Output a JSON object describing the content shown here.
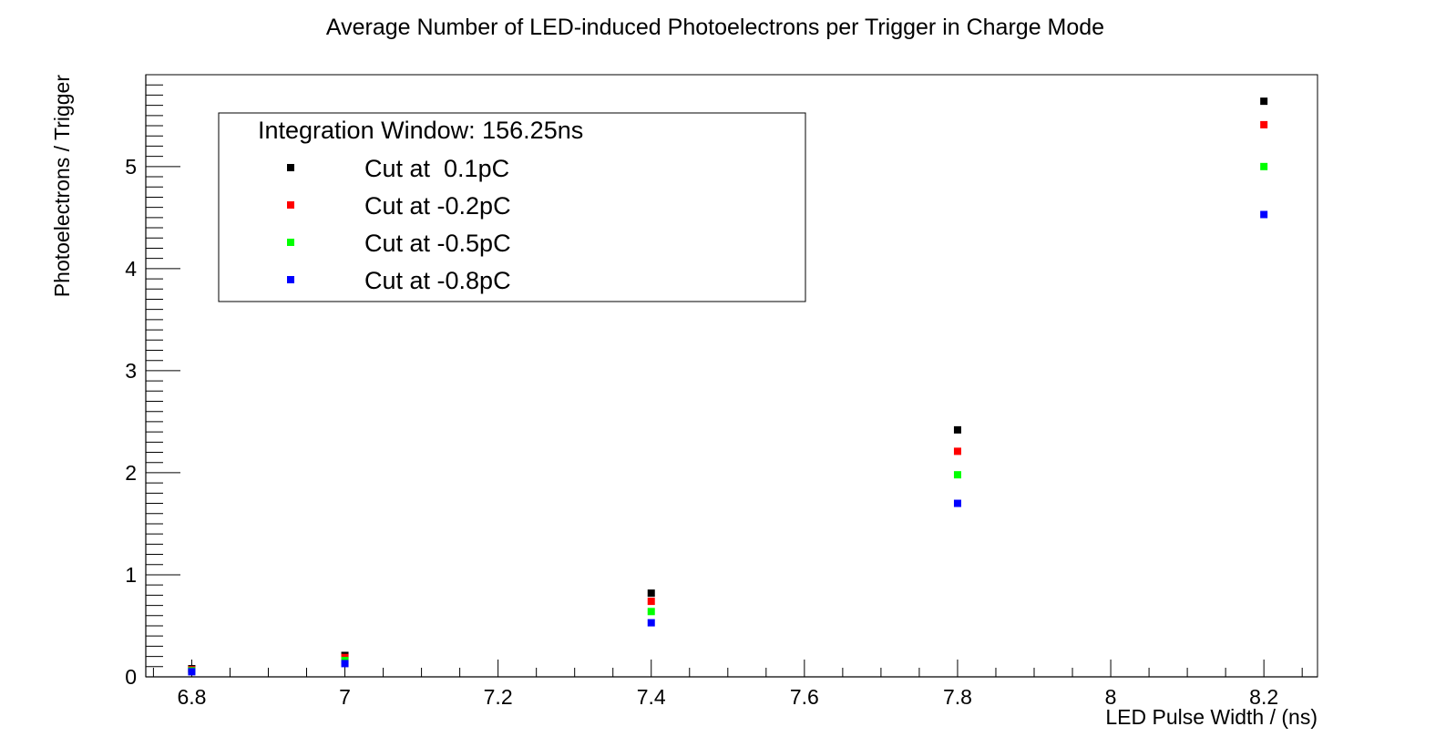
{
  "chart_data": {
    "type": "scatter",
    "title": "Average Number of LED-induced Photoelectrons per Trigger in Charge Mode",
    "xlabel": "LED Pulse Width / (ns)",
    "ylabel": "Photoelectrons / Trigger",
    "xlim": [
      6.74,
      8.27
    ],
    "ylim": [
      0,
      5.9
    ],
    "x_ticks": [
      6.8,
      7.0,
      7.2,
      7.4,
      7.6,
      7.8,
      8.0,
      8.2
    ],
    "x_tick_labels": [
      "6.8",
      "7",
      "7.2",
      "7.4",
      "7.6",
      "7.8",
      "8",
      "8.2"
    ],
    "y_ticks": [
      0,
      1,
      2,
      3,
      4,
      5
    ],
    "y_tick_labels": [
      "0",
      "1",
      "2",
      "3",
      "4",
      "5"
    ],
    "grid": false,
    "legend": {
      "position": "top-left",
      "header": "Integration Window: 156.25ns",
      "entries": [
        "Cut at  0.1pC",
        "Cut at -0.2pC",
        "Cut at -0.5pC",
        "Cut at -0.8pC"
      ]
    },
    "series": [
      {
        "name": "Cut at  0.1pC",
        "color": "#000000",
        "x": [
          6.8,
          7.0,
          7.4,
          7.8,
          8.2
        ],
        "y": [
          0.08,
          0.21,
          0.82,
          2.42,
          5.64
        ]
      },
      {
        "name": "Cut at -0.2pC",
        "color": "#ff0000",
        "x": [
          6.8,
          7.0,
          7.4,
          7.8,
          8.2
        ],
        "y": [
          0.07,
          0.19,
          0.74,
          2.21,
          5.41
        ]
      },
      {
        "name": "Cut at -0.5pC",
        "color": "#00ff00",
        "x": [
          6.8,
          7.0,
          7.4,
          7.8,
          8.2
        ],
        "y": [
          0.06,
          0.16,
          0.64,
          1.98,
          5.0
        ]
      },
      {
        "name": "Cut at -0.8pC",
        "color": "#0000ff",
        "x": [
          6.8,
          7.0,
          7.4,
          7.8,
          8.2
        ],
        "y": [
          0.05,
          0.13,
          0.53,
          1.7,
          4.53
        ]
      }
    ]
  }
}
